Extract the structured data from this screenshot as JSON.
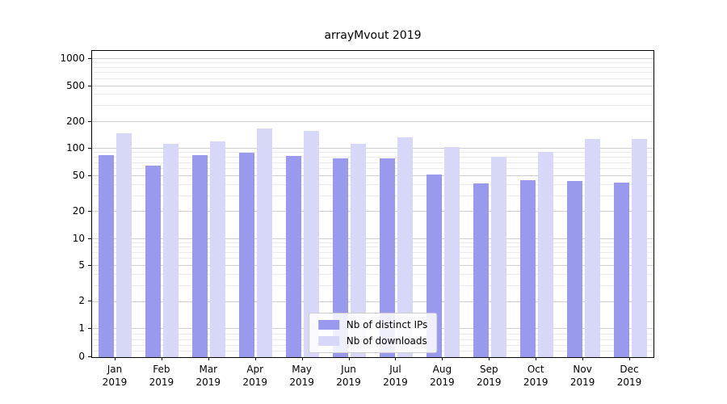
{
  "title": "arrayMvout 2019",
  "chart_data": {
    "type": "bar",
    "title": "arrayMvout 2019",
    "categories": [
      "Jan 2019",
      "Feb 2019",
      "Mar 2019",
      "Apr 2019",
      "May 2019",
      "Jun 2019",
      "Jul 2019",
      "Aug 2019",
      "Sep 2019",
      "Oct 2019",
      "Nov 2019",
      "Dec 2019"
    ],
    "series": [
      {
        "name": "Nb of distinct IPs",
        "color": "#9999ee",
        "values": [
          85,
          65,
          85,
          90,
          83,
          78,
          78,
          52,
          41,
          45,
          44,
          42
        ]
      },
      {
        "name": "Nb of downloads",
        "color": "#d7d7f8",
        "values": [
          150,
          115,
          122,
          168,
          158,
          113,
          135,
          104,
          82,
          92,
          130,
          130
        ]
      }
    ],
    "yscale": "symlog",
    "yticks": [
      0,
      1,
      2,
      5,
      10,
      20,
      50,
      100,
      200,
      500,
      1000
    ],
    "ylim": [
      0,
      1000
    ],
    "xlabel": "",
    "ylabel": "",
    "grid": true,
    "legend_position": "lower center"
  }
}
